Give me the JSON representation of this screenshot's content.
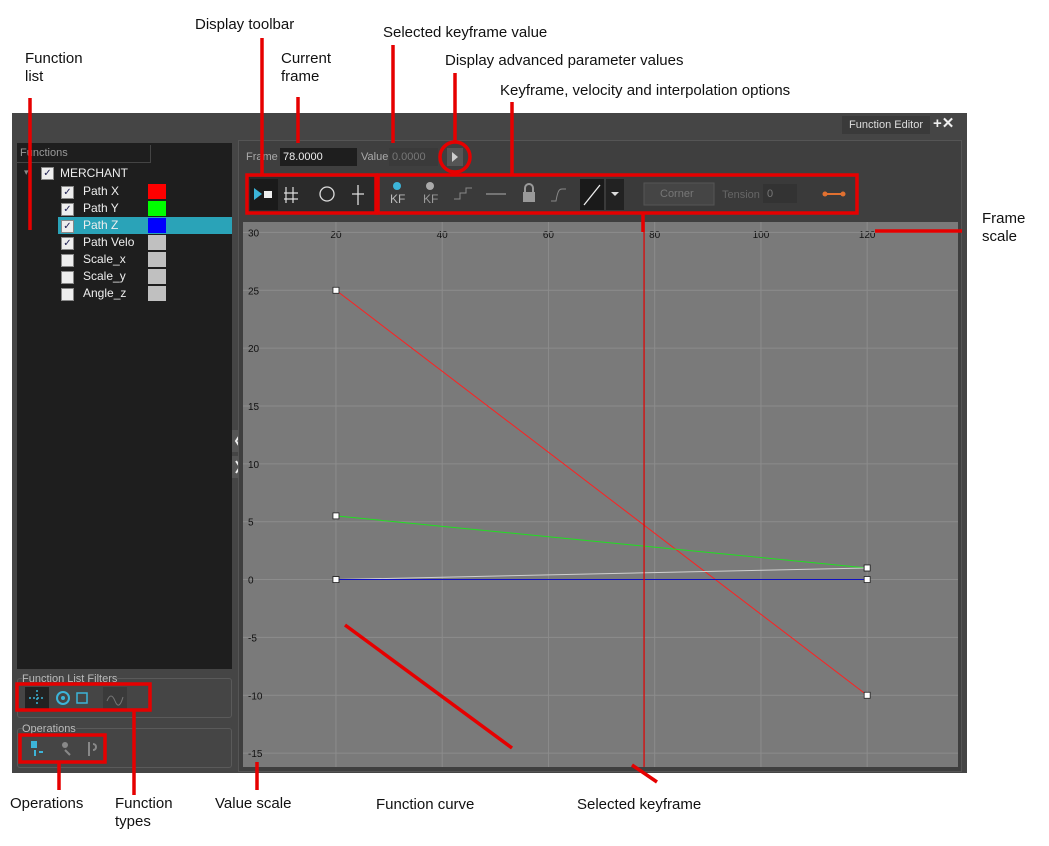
{
  "window": {
    "tab": "Function Editor"
  },
  "functions_panel": {
    "header": "Functions",
    "root": {
      "label": "MERCHANT",
      "checked": true,
      "children": [
        {
          "label": "Path X",
          "checked": true,
          "color": "#ff0000"
        },
        {
          "label": "Path Y",
          "checked": true,
          "color": "#00ff00"
        },
        {
          "label": "Path Z",
          "checked": true,
          "color": "#0000ff",
          "selected": true
        },
        {
          "label": "Path Velo",
          "checked": true,
          "color": "#c0c0c0"
        },
        {
          "label": "Scale_x",
          "checked": false,
          "color": "#c0c0c0"
        },
        {
          "label": "Scale_y",
          "checked": false,
          "color": "#c0c0c0"
        },
        {
          "label": "Angle_z",
          "checked": false,
          "color": "#c0c0c0"
        }
      ]
    }
  },
  "filters": {
    "title": "Function List Filters"
  },
  "operations": {
    "title": "Operations"
  },
  "toolbar": {
    "frame_label": "Frame",
    "frame_value": "78.0000",
    "value_label": "Value",
    "value_value": "0.0000",
    "kf_labels": [
      "KF",
      "KF"
    ],
    "interpolation": "Corner",
    "tension_label": "Tension",
    "tension_value": "0"
  },
  "graph": {
    "xlim": [
      2.5,
      137.1
    ],
    "ylim": [
      -16.2,
      30.9
    ],
    "xticks": [
      20,
      40,
      60,
      80,
      100,
      120
    ],
    "yticks": [
      30,
      25,
      20,
      15,
      10,
      5,
      0,
      -5,
      -10,
      -15
    ],
    "current_frame": 78,
    "curves": [
      {
        "color": "#ff2020",
        "x": [
          20,
          120
        ],
        "y": [
          25,
          -10
        ]
      },
      {
        "color": "#20e020",
        "x": [
          20,
          120
        ],
        "y": [
          5.5,
          1
        ]
      },
      {
        "color": "#d0d0d0",
        "x": [
          20,
          120
        ],
        "y": [
          0,
          1
        ]
      },
      {
        "color": "#1010c0",
        "x": [
          20,
          120
        ],
        "y": [
          0,
          0
        ]
      }
    ]
  },
  "annotations": [
    "Display toolbar",
    "Current frame",
    "Selected keyframe value",
    "Display advanced parameter values",
    "Keyframe, velocity and interpolation options",
    "Function list",
    "Frame scale",
    "Operations",
    "Function types",
    "Value scale",
    "Function curve",
    "Selected keyframe"
  ]
}
